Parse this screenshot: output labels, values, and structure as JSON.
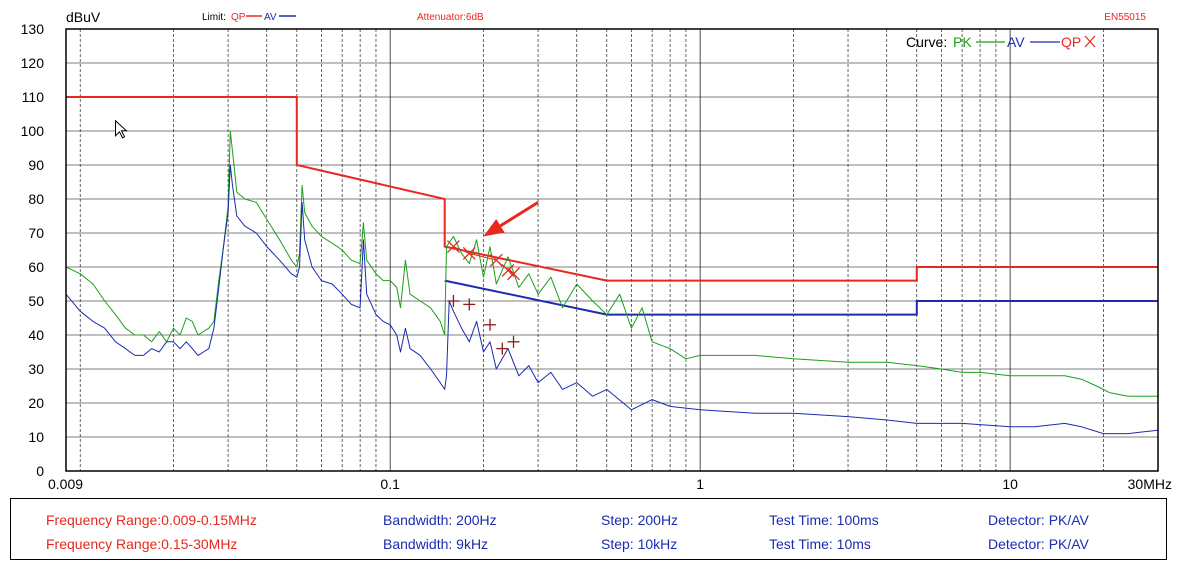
{
  "chart_data": {
    "type": "line",
    "title": "",
    "xlabel": "",
    "ylabel": "dBuV",
    "x_unit": "MHz",
    "x_scale": "log",
    "xlim": [
      0.009,
      30
    ],
    "ylim": [
      0,
      130
    ],
    "x_ticks": [
      {
        "value": 0.009,
        "label": "0.009"
      },
      {
        "value": 0.1,
        "label": "0.1"
      },
      {
        "value": 1,
        "label": "1"
      },
      {
        "value": 10,
        "label": "10"
      },
      {
        "value": 30,
        "label": "30MHz"
      }
    ],
    "y_ticks": [
      0,
      10,
      20,
      30,
      40,
      50,
      60,
      70,
      80,
      90,
      100,
      110,
      120,
      130
    ],
    "grid": true,
    "header": {
      "limit_prefix": "Limit:",
      "limit_qp": "QP",
      "limit_av": "AV",
      "attenuator": "Attenuator:6dB",
      "standard": "EN55015"
    },
    "legend": {
      "prefix": "Curve:",
      "pk": "PK",
      "av": "AV",
      "qp": "QP",
      "placement": "top-right"
    },
    "colors": {
      "pk": "#1ba01b",
      "av": "#1b2bb0",
      "qp": "#e8281e",
      "limit_qp": "#e8281e",
      "limit_av": "#1b2bb0",
      "grid": "#000000",
      "arrow": "#e8281e"
    },
    "limits": {
      "qp": [
        [
          0.009,
          110
        ],
        [
          0.05,
          110
        ],
        [
          0.05,
          90
        ],
        [
          0.15,
          80
        ],
        [
          0.15,
          66
        ],
        [
          0.5,
          56
        ],
        [
          5,
          56
        ],
        [
          5,
          60
        ],
        [
          30,
          60
        ]
      ],
      "av": [
        [
          0.15,
          56
        ],
        [
          0.5,
          46
        ],
        [
          5,
          46
        ],
        [
          5,
          50
        ],
        [
          30,
          50
        ]
      ]
    },
    "series": [
      {
        "key": "pk",
        "name": "PK",
        "points": [
          [
            0.009,
            60
          ],
          [
            0.01,
            58
          ],
          [
            0.011,
            55
          ],
          [
            0.012,
            50
          ],
          [
            0.013,
            46
          ],
          [
            0.014,
            42
          ],
          [
            0.015,
            40
          ],
          [
            0.016,
            40
          ],
          [
            0.017,
            38
          ],
          [
            0.018,
            41
          ],
          [
            0.019,
            38
          ],
          [
            0.02,
            42
          ],
          [
            0.021,
            40
          ],
          [
            0.022,
            45
          ],
          [
            0.023,
            44
          ],
          [
            0.024,
            40
          ],
          [
            0.025,
            41
          ],
          [
            0.026,
            42
          ],
          [
            0.027,
            44
          ],
          [
            0.028,
            56
          ],
          [
            0.029,
            66
          ],
          [
            0.03,
            78
          ],
          [
            0.0305,
            100
          ],
          [
            0.031,
            94
          ],
          [
            0.032,
            82
          ],
          [
            0.034,
            80
          ],
          [
            0.037,
            79
          ],
          [
            0.04,
            74
          ],
          [
            0.044,
            68
          ],
          [
            0.048,
            62
          ],
          [
            0.05,
            60
          ],
          [
            0.051,
            64
          ],
          [
            0.052,
            84
          ],
          [
            0.053,
            76
          ],
          [
            0.056,
            72
          ],
          [
            0.06,
            69
          ],
          [
            0.065,
            67
          ],
          [
            0.07,
            65
          ],
          [
            0.075,
            62
          ],
          [
            0.08,
            61
          ],
          [
            0.082,
            73
          ],
          [
            0.084,
            62
          ],
          [
            0.09,
            58
          ],
          [
            0.095,
            56
          ],
          [
            0.1,
            56
          ],
          [
            0.105,
            54
          ],
          [
            0.108,
            48
          ],
          [
            0.112,
            62
          ],
          [
            0.116,
            52
          ],
          [
            0.125,
            50
          ],
          [
            0.135,
            48
          ],
          [
            0.145,
            44
          ],
          [
            0.15,
            40
          ],
          [
            0.152,
            66
          ],
          [
            0.16,
            69
          ],
          [
            0.17,
            64
          ],
          [
            0.18,
            61
          ],
          [
            0.19,
            68
          ],
          [
            0.2,
            57
          ],
          [
            0.21,
            66
          ],
          [
            0.22,
            55
          ],
          [
            0.24,
            63
          ],
          [
            0.26,
            54
          ],
          [
            0.28,
            58
          ],
          [
            0.3,
            52
          ],
          [
            0.33,
            57
          ],
          [
            0.36,
            48
          ],
          [
            0.4,
            55
          ],
          [
            0.45,
            50
          ],
          [
            0.5,
            46
          ],
          [
            0.55,
            52
          ],
          [
            0.6,
            42
          ],
          [
            0.65,
            48
          ],
          [
            0.7,
            38
          ],
          [
            0.8,
            36
          ],
          [
            0.9,
            33
          ],
          [
            1.0,
            34
          ],
          [
            1.5,
            34
          ],
          [
            2,
            33
          ],
          [
            3,
            32
          ],
          [
            4,
            32
          ],
          [
            5,
            31
          ],
          [
            6,
            30
          ],
          [
            7,
            29
          ],
          [
            8,
            29
          ],
          [
            10,
            28
          ],
          [
            12,
            28
          ],
          [
            15,
            28
          ],
          [
            17,
            27
          ],
          [
            19,
            25
          ],
          [
            21,
            23
          ],
          [
            24,
            22
          ],
          [
            27,
            22
          ],
          [
            30,
            22
          ]
        ]
      },
      {
        "key": "av",
        "name": "AV",
        "points": [
          [
            0.009,
            52
          ],
          [
            0.01,
            47
          ],
          [
            0.011,
            44
          ],
          [
            0.012,
            42
          ],
          [
            0.013,
            38
          ],
          [
            0.014,
            36
          ],
          [
            0.015,
            34
          ],
          [
            0.016,
            34
          ],
          [
            0.017,
            36
          ],
          [
            0.018,
            35
          ],
          [
            0.019,
            38
          ],
          [
            0.02,
            38
          ],
          [
            0.021,
            36
          ],
          [
            0.022,
            38
          ],
          [
            0.023,
            36
          ],
          [
            0.024,
            34
          ],
          [
            0.025,
            35
          ],
          [
            0.026,
            36
          ],
          [
            0.027,
            42
          ],
          [
            0.028,
            54
          ],
          [
            0.029,
            66
          ],
          [
            0.03,
            76
          ],
          [
            0.0305,
            90
          ],
          [
            0.031,
            84
          ],
          [
            0.032,
            75
          ],
          [
            0.034,
            72
          ],
          [
            0.037,
            70
          ],
          [
            0.04,
            66
          ],
          [
            0.044,
            62
          ],
          [
            0.048,
            58
          ],
          [
            0.05,
            57
          ],
          [
            0.051,
            60
          ],
          [
            0.052,
            79
          ],
          [
            0.053,
            68
          ],
          [
            0.056,
            60
          ],
          [
            0.06,
            56
          ],
          [
            0.065,
            55
          ],
          [
            0.07,
            52
          ],
          [
            0.075,
            49
          ],
          [
            0.08,
            48
          ],
          [
            0.082,
            68
          ],
          [
            0.084,
            52
          ],
          [
            0.09,
            46
          ],
          [
            0.095,
            44
          ],
          [
            0.1,
            43
          ],
          [
            0.105,
            40
          ],
          [
            0.108,
            35
          ],
          [
            0.112,
            42
          ],
          [
            0.116,
            36
          ],
          [
            0.125,
            34
          ],
          [
            0.135,
            30
          ],
          [
            0.145,
            26
          ],
          [
            0.15,
            24
          ],
          [
            0.152,
            28
          ],
          [
            0.155,
            50
          ],
          [
            0.16,
            47
          ],
          [
            0.17,
            42
          ],
          [
            0.18,
            38
          ],
          [
            0.19,
            44
          ],
          [
            0.2,
            35
          ],
          [
            0.21,
            38
          ],
          [
            0.22,
            30
          ],
          [
            0.24,
            36
          ],
          [
            0.26,
            28
          ],
          [
            0.28,
            31
          ],
          [
            0.3,
            26
          ],
          [
            0.33,
            29
          ],
          [
            0.36,
            24
          ],
          [
            0.4,
            26
          ],
          [
            0.45,
            22
          ],
          [
            0.5,
            24
          ],
          [
            0.6,
            18
          ],
          [
            0.7,
            21
          ],
          [
            0.8,
            19
          ],
          [
            1.0,
            18
          ],
          [
            1.5,
            17
          ],
          [
            2,
            17
          ],
          [
            3,
            16
          ],
          [
            4,
            15
          ],
          [
            5,
            14
          ],
          [
            7,
            14
          ],
          [
            10,
            13
          ],
          [
            12,
            13
          ],
          [
            15,
            14
          ],
          [
            17,
            13
          ],
          [
            20,
            11
          ],
          [
            24,
            11
          ],
          [
            30,
            12
          ]
        ]
      },
      {
        "key": "qp",
        "name": "QP",
        "points": [
          [
            0.16,
            66
          ],
          [
            0.18,
            64
          ],
          [
            0.22,
            62
          ],
          [
            0.24,
            59
          ],
          [
            0.25,
            58
          ]
        ]
      },
      {
        "key": "av_markers",
        "name": "",
        "points": [
          [
            0.16,
            50
          ],
          [
            0.18,
            49
          ],
          [
            0.21,
            43
          ],
          [
            0.23,
            36
          ],
          [
            0.25,
            38
          ]
        ]
      }
    ],
    "annotations": [
      {
        "type": "arrow",
        "from": [
          0.3,
          79
        ],
        "to": [
          0.2,
          69
        ]
      },
      {
        "type": "cursor",
        "at": [
          0.013,
          103
        ]
      }
    ]
  },
  "info": {
    "rows": [
      {
        "range": "Frequency Range:0.009-0.15MHz",
        "bandwidth": "Bandwidth: 200Hz",
        "step": "Step: 200Hz",
        "test_time": "Test Time: 100ms",
        "detector": "Detector: PK/AV"
      },
      {
        "range": "Frequency Range:0.15-30MHz",
        "bandwidth": "Bandwidth: 9kHz",
        "step": "Step: 10kHz",
        "test_time": "Test Time: 10ms",
        "detector": "Detector: PK/AV"
      }
    ]
  }
}
